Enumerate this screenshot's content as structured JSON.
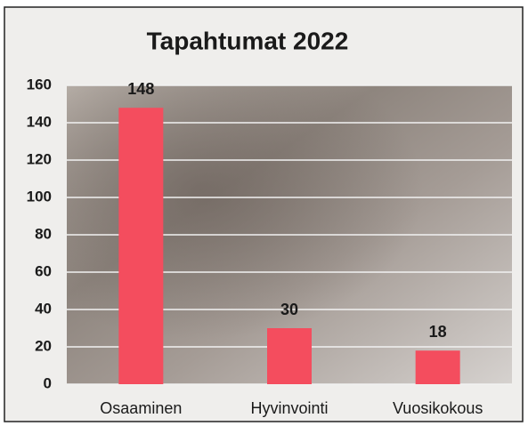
{
  "chart_data": {
    "type": "bar",
    "title": "Tapahtumat 2022",
    "categories": [
      "Osaaminen",
      "Hyvinvointi",
      "Vuosikokous"
    ],
    "values": [
      148,
      30,
      18
    ],
    "color": "#f44d5e",
    "ylim": [
      0,
      160
    ],
    "yticks": [
      0,
      20,
      40,
      60,
      80,
      100,
      120,
      140,
      160
    ],
    "grid": true
  }
}
